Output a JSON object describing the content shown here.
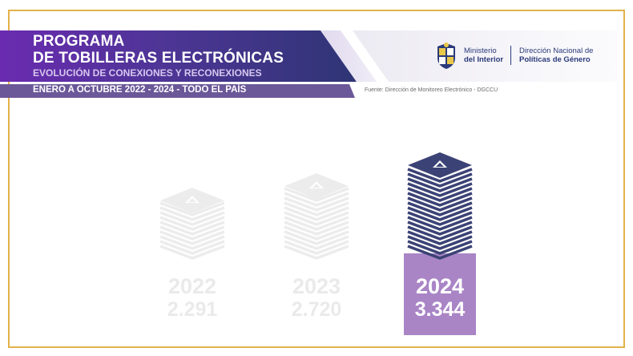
{
  "header": {
    "title_line1": "PROGRAMA",
    "title_line2": "DE TOBILLERAS ELECTRÓNICAS",
    "subtitle": "EVOLUCIÓN DE CONEXIONES Y RECONEXIONES",
    "period": "ENERO A OCTUBRE 2022 - 2024 - TODO EL PAÍS",
    "source": "Fuente: Dirección de Monitoreo Electrónico - DGCCU"
  },
  "logos": {
    "ministry_line1": "Ministerio",
    "ministry_line2": "del Interior",
    "direction_line1": "Dirección Nacional de",
    "direction_line2": "Políticas de Género"
  },
  "colors": {
    "header_purple": "#6a2bb0",
    "header_navy": "#2f3575",
    "highlight": "#a985c6",
    "stack_active": "#3b4275",
    "stack_faded": "#ececec",
    "frame": "#e3b24a"
  },
  "chart_data": {
    "type": "bar",
    "title": "DE TOBILLERAS ELECTRÓNICAS",
    "categories": [
      "2022",
      "2023",
      "2024"
    ],
    "values": [
      2291,
      2720,
      3344
    ],
    "value_labels": [
      "2.291",
      "2.720",
      "3.344"
    ],
    "highlighted": "2024"
  }
}
